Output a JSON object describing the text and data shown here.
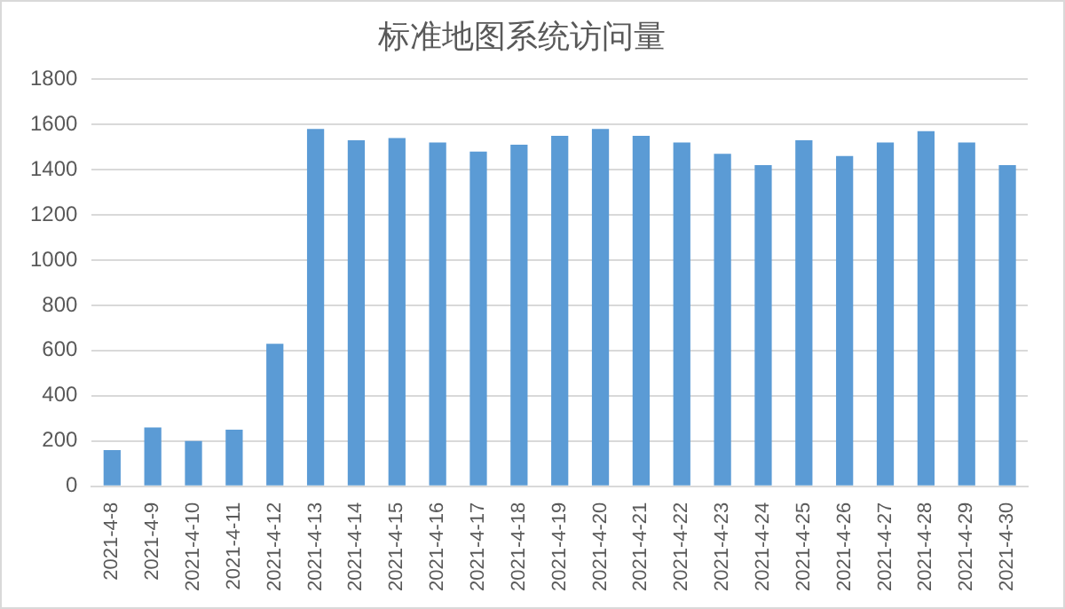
{
  "chart_data": {
    "type": "bar",
    "title": "标准地图系统访问量",
    "categories": [
      "2021-4-8",
      "2021-4-9",
      "2021-4-10",
      "2021-4-11",
      "2021-4-12",
      "2021-4-13",
      "2021-4-14",
      "2021-4-15",
      "2021-4-16",
      "2021-4-17",
      "2021-4-18",
      "2021-4-19",
      "2021-4-20",
      "2021-4-21",
      "2021-4-22",
      "2021-4-23",
      "2021-4-24",
      "2021-4-25",
      "2021-4-26",
      "2021-4-27",
      "2021-4-28",
      "2021-4-29",
      "2021-4-30"
    ],
    "values": [
      160,
      260,
      200,
      250,
      630,
      1580,
      1530,
      1540,
      1520,
      1480,
      1510,
      1550,
      1580,
      1550,
      1520,
      1470,
      1420,
      1530,
      1460,
      1520,
      1570,
      1520,
      1420
    ],
    "color": "#5b9bd5",
    "ylim": [
      0,
      1800
    ],
    "yticks": [
      0,
      200,
      400,
      600,
      800,
      1000,
      1200,
      1400,
      1600,
      1800
    ],
    "grid": "y"
  }
}
